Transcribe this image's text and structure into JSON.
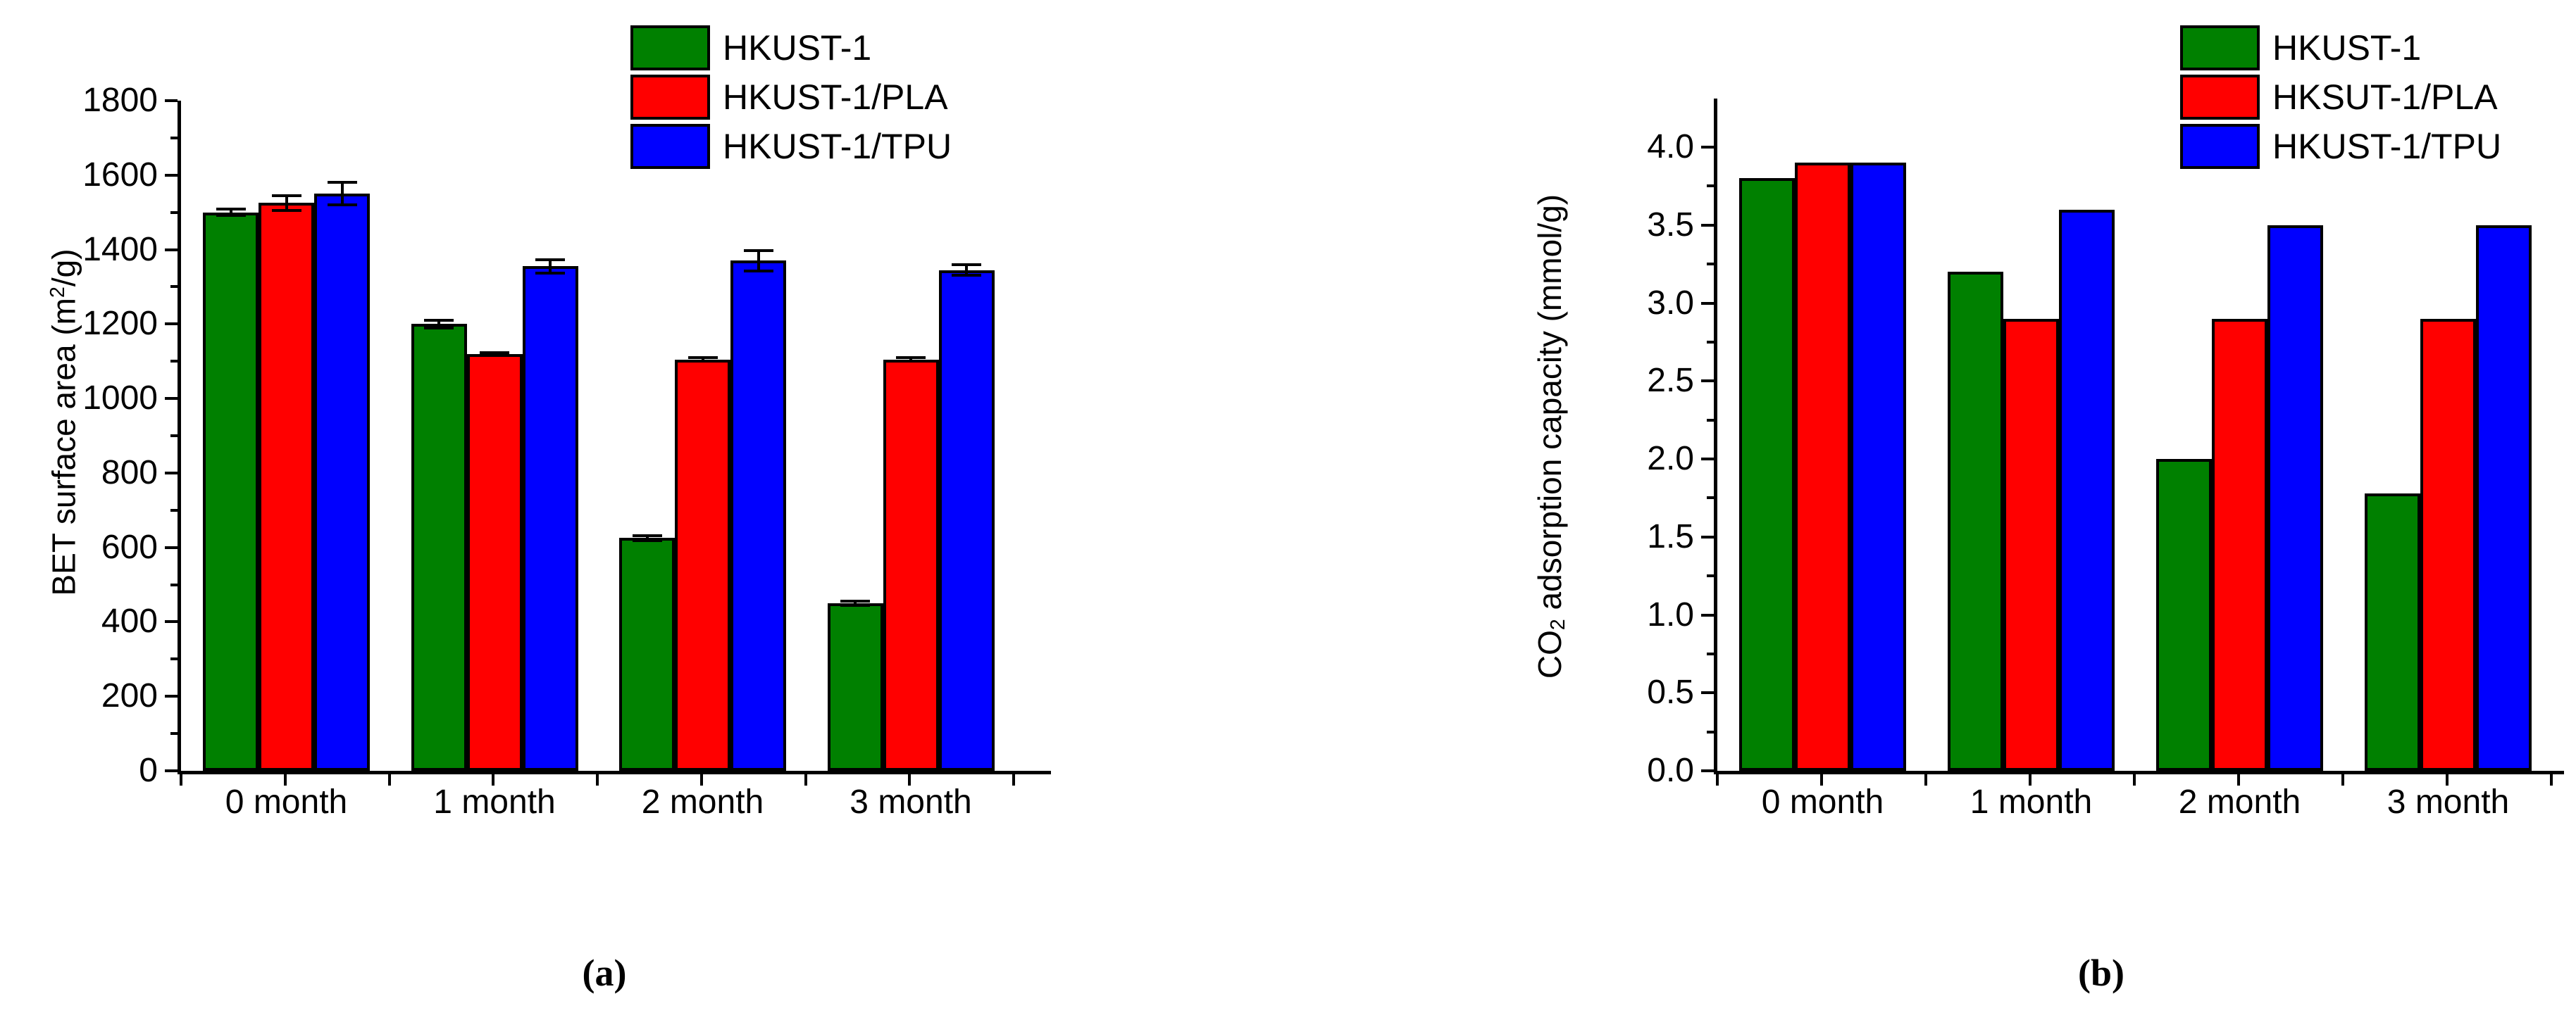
{
  "colors": {
    "green": "#008000",
    "red": "#ff0000",
    "blue": "#0000ff",
    "axis": "#000000",
    "background": "#ffffff"
  },
  "chart_data": [
    {
      "panel_label": "(a)",
      "type": "bar",
      "title": "",
      "xlabel": "",
      "ylabel_parts": [
        {
          "text": "BET surface area (m",
          "style": "normal"
        },
        {
          "text": "2",
          "style": "sup"
        },
        {
          "text": "/g)",
          "style": "normal"
        }
      ],
      "categories": [
        "0 month",
        "1 month",
        "2 month",
        "3 month"
      ],
      "series": [
        {
          "name": "HKUST-1",
          "color": "#008000",
          "values": [
            1500,
            1200,
            625,
            450
          ],
          "errors": [
            8,
            10,
            6,
            5
          ]
        },
        {
          "name": "HKUST-1/PLA",
          "color": "#ff0000",
          "values": [
            1525,
            1120,
            1105,
            1105
          ],
          "errors": [
            20,
            4,
            4,
            4
          ]
        },
        {
          "name": "HKUST-1/TPU",
          "color": "#0000ff",
          "values": [
            1550,
            1355,
            1370,
            1345
          ],
          "errors": [
            30,
            18,
            28,
            14
          ]
        }
      ],
      "yticks": [
        "0",
        "200",
        "400",
        "600",
        "800",
        "1000",
        "1200",
        "1400",
        "1600",
        "1800"
      ],
      "ytick_step": 200,
      "yminor_step": 100,
      "ylim": [
        0,
        1807
      ],
      "legend_position": "top-right",
      "grid": false,
      "error_bars": true
    },
    {
      "panel_label": "(b)",
      "type": "bar",
      "title": "",
      "xlabel": "",
      "ylabel_parts": [
        {
          "text": "CO",
          "style": "normal"
        },
        {
          "text": "2",
          "style": "sub"
        },
        {
          "text": " adsorption capacity (mmol/g)",
          "style": "normal"
        }
      ],
      "categories": [
        "0 month",
        "1 month",
        "2 month",
        "3 month"
      ],
      "series": [
        {
          "name": "HKUST-1",
          "color": "#008000",
          "values": [
            3.8,
            3.2,
            2.0,
            1.78
          ],
          "errors": [
            0,
            0,
            0,
            0
          ]
        },
        {
          "name": "HKSUT-1/PLA",
          "color": "#ff0000",
          "values": [
            3.9,
            2.9,
            2.9,
            2.9
          ],
          "errors": [
            0,
            0,
            0,
            0
          ]
        },
        {
          "name": "HKUST-1/TPU",
          "color": "#0000ff",
          "values": [
            3.9,
            3.6,
            3.5,
            3.5
          ],
          "errors": [
            0,
            0,
            0,
            0
          ]
        }
      ],
      "yticks": [
        "0.0",
        "0.5",
        "1.0",
        "1.5",
        "2.0",
        "2.5",
        "3.0",
        "3.5",
        "4.0"
      ],
      "ytick_step": 0.5,
      "yminor_step": 0.25,
      "ylim": [
        0,
        4.32
      ],
      "legend_position": "top-right",
      "grid": false,
      "error_bars": false
    }
  ]
}
